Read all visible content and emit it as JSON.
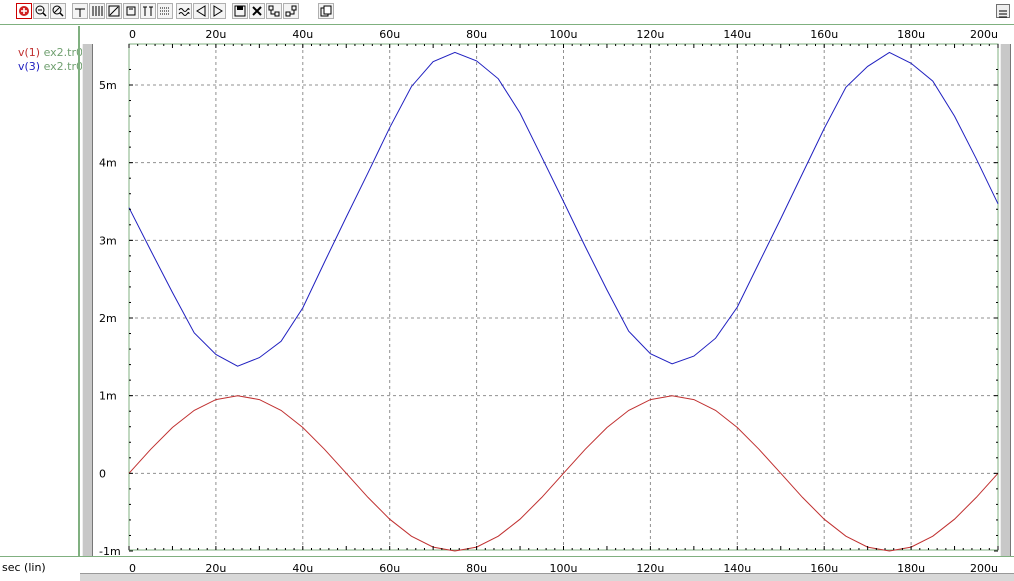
{
  "toolbar": {
    "icons": [
      "zoom-in-icon",
      "zoom-out-icon",
      "zoom-fit-icon",
      "cursor-icon",
      "grid-icon",
      "measure-icon",
      "marker-icon",
      "pan-icon",
      "waveform-icon",
      "scroll-left-icon",
      "scroll-right-icon",
      "save-icon",
      "delete-icon",
      "hierarchy-icon",
      "layout-icon",
      "copy-icon"
    ],
    "window_icon": "window-restore-icon"
  },
  "legend": [
    {
      "signal": "v(1)",
      "file": "ex2.tr0",
      "color": "#c03030"
    },
    {
      "signal": "v(3)",
      "file": "ex2.tr0",
      "color": "#2020c0"
    }
  ],
  "colors": {
    "grid": "#909090",
    "axis_frame": "#80b080",
    "file_text": "#70a070"
  },
  "x_axis_label": "sec (lin)",
  "chart_data": {
    "type": "line",
    "xlim": [
      0,
      200
    ],
    "ylim": [
      -1,
      5.5
    ],
    "x_ticks": [
      0,
      20,
      40,
      60,
      80,
      100,
      120,
      140,
      160,
      180,
      200
    ],
    "x_tick_labels": [
      "0",
      "20u",
      "40u",
      "60u",
      "80u",
      "100u",
      "120u",
      "140u",
      "160u",
      "180u",
      "200u"
    ],
    "y_ticks": [
      -1,
      0,
      1,
      2,
      3,
      4,
      5
    ],
    "y_tick_labels": [
      "-1m",
      "0",
      "1m",
      "2m",
      "3m",
      "4m",
      "5m"
    ],
    "grid": true,
    "series": [
      {
        "name": "v(1)",
        "color": "#c03030",
        "x": [
          0,
          5,
          10,
          15,
          20,
          25,
          30,
          35,
          40,
          45,
          50,
          55,
          60,
          65,
          70,
          75,
          80,
          85,
          90,
          95,
          100,
          105,
          110,
          115,
          120,
          125,
          130,
          135,
          140,
          145,
          150,
          155,
          160,
          165,
          170,
          175,
          180,
          185,
          190,
          195,
          200
        ],
        "y": [
          0,
          0.31,
          0.59,
          0.81,
          0.95,
          1,
          0.95,
          0.81,
          0.59,
          0.31,
          0,
          -0.31,
          -0.59,
          -0.81,
          -0.95,
          -1,
          -0.95,
          -0.81,
          -0.59,
          -0.31,
          0,
          0.31,
          0.59,
          0.81,
          0.95,
          1,
          0.95,
          0.81,
          0.59,
          0.31,
          0,
          -0.31,
          -0.59,
          -0.81,
          -0.95,
          -1,
          -0.95,
          -0.81,
          -0.59,
          -0.31,
          0
        ]
      },
      {
        "name": "v(3)",
        "color": "#2020c0",
        "x": [
          0,
          5,
          10,
          15,
          20,
          25,
          30,
          35,
          40,
          45,
          50,
          55,
          60,
          65,
          70,
          75,
          80,
          85,
          90,
          95,
          100,
          105,
          110,
          115,
          120,
          125,
          130,
          135,
          140,
          145,
          150,
          155,
          160,
          165,
          170,
          175,
          180,
          185,
          190,
          195,
          200
        ],
        "y": [
          3.42,
          2.87,
          2.33,
          1.81,
          1.53,
          1.38,
          1.49,
          1.7,
          2.13,
          2.72,
          3.3,
          3.87,
          4.45,
          4.98,
          5.3,
          5.42,
          5.31,
          5.08,
          4.64,
          4.07,
          3.5,
          2.92,
          2.36,
          1.83,
          1.54,
          1.41,
          1.51,
          1.74,
          2.14,
          2.71,
          3.28,
          3.86,
          4.44,
          4.97,
          5.24,
          5.42,
          5.28,
          5.05,
          4.6,
          4.05,
          3.47
        ]
      }
    ]
  }
}
